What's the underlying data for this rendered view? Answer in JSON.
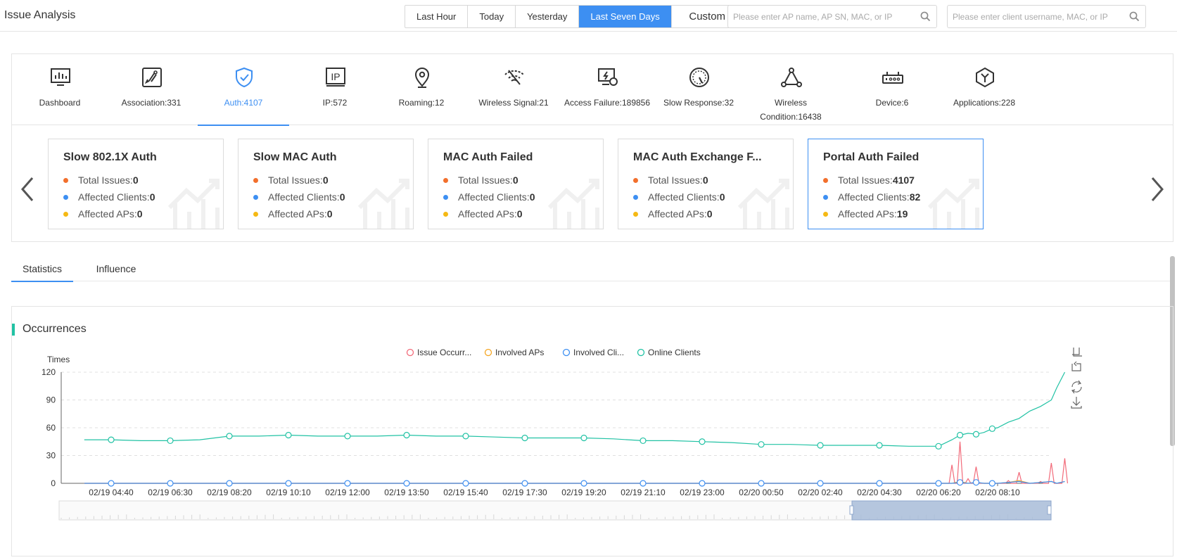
{
  "header": {
    "title": "Issue Analysis",
    "time_ranges": [
      "Last Hour",
      "Today",
      "Yesterday",
      "Last Seven Days"
    ],
    "active_time_range": "Last Seven Days",
    "custom_label": "Custom",
    "ap_search_placeholder": "Please enter AP name, AP SN, MAC, or IP",
    "client_search_placeholder": "Please enter client username, MAC, or IP"
  },
  "categories": [
    {
      "label": "Dashboard",
      "icon": "dashboard-icon"
    },
    {
      "label": "Association:331",
      "icon": "association-icon"
    },
    {
      "label": "Auth:4107",
      "icon": "shield-check-icon",
      "active": true
    },
    {
      "label": "IP:572",
      "icon": "ip-icon"
    },
    {
      "label": "Roaming:12",
      "icon": "location-pin-icon"
    },
    {
      "label": "Wireless Signal:21",
      "icon": "wifi-signal-icon"
    },
    {
      "label": "Access Failure:189856",
      "icon": "access-failure-icon"
    },
    {
      "label": "Slow Response:32",
      "icon": "gauge-icon"
    },
    {
      "label": "Wireless Condition:16438",
      "label_line1": "Wireless",
      "label_line2": "Condition:16438",
      "icon": "topology-icon"
    },
    {
      "label": "Device:6",
      "icon": "device-icon"
    },
    {
      "label": "Applications:228",
      "icon": "cube-icon"
    }
  ],
  "issue_cards": [
    {
      "title": "Slow 802.1X Auth",
      "total_label": "Total Issues:",
      "total": "0",
      "clients_label": "Affected Clients:",
      "clients": "0",
      "aps_label": "Affected APs:",
      "aps": "0",
      "selected": false
    },
    {
      "title": "Slow MAC Auth",
      "total_label": "Total Issues:",
      "total": "0",
      "clients_label": "Affected Clients:",
      "clients": "0",
      "aps_label": "Affected APs:",
      "aps": "0",
      "selected": false
    },
    {
      "title": "MAC Auth Failed",
      "total_label": "Total Issues:",
      "total": "0",
      "clients_label": "Affected Clients:",
      "clients": "0",
      "aps_label": "Affected APs:",
      "aps": "0",
      "selected": false
    },
    {
      "title": "MAC Auth Exchange F...",
      "total_label": "Total Issues:",
      "total": "0",
      "clients_label": "Affected Clients:",
      "clients": "0",
      "aps_label": "Affected APs:",
      "aps": "0",
      "selected": false
    },
    {
      "title": "Portal Auth Failed",
      "total_label": "Total Issues:",
      "total": "4107",
      "clients_label": "Affected Clients:",
      "clients": "82",
      "aps_label": "Affected APs:",
      "aps": "19",
      "selected": true
    }
  ],
  "tabs": [
    {
      "label": "Statistics",
      "active": true
    },
    {
      "label": "Influence",
      "active": false
    }
  ],
  "colors": {
    "accent": "#3d8ff2",
    "dot_orange": "#f26f2c",
    "dot_blue": "#3d8ff2",
    "dot_yellow": "#f5b914",
    "occurrences_bar": "#21c2a4"
  },
  "chart_data": {
    "type": "line",
    "title": "Occurrences",
    "ylabel": "Times",
    "ylim": [
      0,
      120
    ],
    "yticks": [
      0,
      30,
      60,
      90,
      120
    ],
    "grid": true,
    "legend_position": "top-center",
    "x_ticks": [
      "02/19 04:40",
      "02/19 06:30",
      "02/19 08:20",
      "02/19 10:10",
      "02/19 12:00",
      "02/19 13:50",
      "02/19 15:40",
      "02/19 17:30",
      "02/19 19:20",
      "02/19 21:10",
      "02/19 23:00",
      "02/20 00:50",
      "02/20 02:40",
      "02/20 04:30",
      "02/20 06:20",
      "02/20 08:10"
    ],
    "x": [
      "02/19 03:50",
      "02/19 04:40",
      "02/19 05:35",
      "02/19 06:30",
      "02/19 07:25",
      "02/19 08:20",
      "02/19 09:15",
      "02/19 10:10",
      "02/19 11:05",
      "02/19 12:00",
      "02/19 12:55",
      "02/19 13:50",
      "02/19 14:45",
      "02/19 15:40",
      "02/19 16:35",
      "02/19 17:30",
      "02/19 18:25",
      "02/19 19:20",
      "02/19 20:15",
      "02/19 21:10",
      "02/19 22:05",
      "02/19 23:00",
      "02/19 23:55",
      "02/20 00:50",
      "02/20 01:45",
      "02/20 02:40",
      "02/20 03:35",
      "02/20 04:30",
      "02/20 05:25",
      "02/20 06:20",
      "02/20 06:45",
      "02/20 07:00",
      "02/20 07:15",
      "02/20 07:30",
      "02/20 07:45",
      "02/20 08:00",
      "02/20 08:10",
      "02/20 08:30",
      "02/20 08:50",
      "02/20 09:10",
      "02/20 09:30",
      "02/20 09:50",
      "02/20 10:00",
      "02/20 10:15"
    ],
    "series": [
      {
        "name": "Issue Occurr...",
        "color": "#f26b7a",
        "values": [
          0,
          0,
          0,
          0,
          0,
          0,
          0,
          0,
          0,
          0,
          0,
          0,
          0,
          0,
          0,
          0,
          0,
          0,
          0,
          0,
          0,
          0,
          0,
          0,
          0,
          0,
          0,
          0,
          0,
          0,
          20,
          45,
          5,
          18,
          0,
          0,
          0,
          3,
          12,
          0,
          2,
          22,
          0,
          27
        ]
      },
      {
        "name": "Involved APs",
        "color": "#f5a623",
        "values": [
          0,
          0,
          0,
          0,
          0,
          0,
          0,
          0,
          0,
          0,
          0,
          0,
          0,
          0,
          0,
          0,
          0,
          0,
          0,
          0,
          0,
          0,
          0,
          0,
          0,
          0,
          0,
          0,
          0,
          0,
          0,
          2,
          0,
          1,
          0,
          0,
          0,
          1,
          3,
          0,
          1,
          2,
          0,
          2
        ]
      },
      {
        "name": "Involved Cli...",
        "color": "#3d8ff2",
        "values": [
          0,
          0,
          0,
          0,
          0,
          0,
          0,
          0,
          0,
          0,
          0,
          0,
          0,
          0,
          0,
          0,
          0,
          0,
          0,
          0,
          0,
          0,
          0,
          0,
          0,
          0,
          0,
          0,
          0,
          0,
          0,
          1,
          0,
          1,
          0,
          0,
          0,
          1,
          2,
          0,
          1,
          2,
          0,
          2
        ]
      },
      {
        "name": "Online Clients",
        "color": "#21c2a4",
        "values": [
          47,
          47,
          46,
          46,
          47,
          51,
          51,
          52,
          51,
          51,
          51,
          52,
          51,
          51,
          50,
          49,
          49,
          49,
          48,
          46,
          46,
          45,
          44,
          42,
          42,
          41,
          41,
          41,
          40,
          40,
          47,
          52,
          54,
          53,
          55,
          59,
          60,
          66,
          70,
          78,
          83,
          90,
          103,
          120
        ]
      }
    ]
  }
}
